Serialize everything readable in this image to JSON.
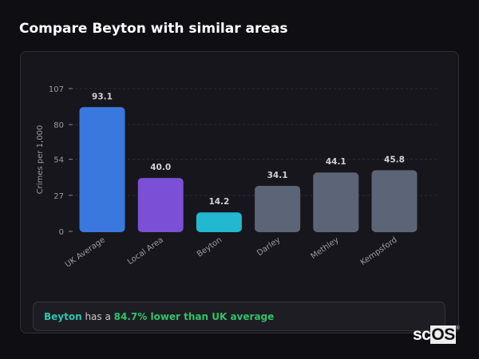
{
  "title": "Compare Beyton with similar areas",
  "chart_data": {
    "type": "bar",
    "categories": [
      "UK Average",
      "Local Area",
      "Beyton",
      "Darley",
      "Methley",
      "Kempsford"
    ],
    "values": [
      93.1,
      40.0,
      14.2,
      34.1,
      44.1,
      45.8
    ],
    "value_labels": [
      "93.1",
      "40.0",
      "14.2",
      "34.1",
      "44.1",
      "45.8"
    ],
    "colors": [
      "#3a78dd",
      "#7b4fd6",
      "#22b8cf",
      "#5c6577",
      "#5c6577",
      "#5c6577"
    ],
    "ylabel": "Crimes per 1,000",
    "yticks": [
      0,
      27,
      54,
      80,
      107
    ],
    "ylim": [
      0,
      107
    ],
    "grid": true
  },
  "summary": {
    "area": "Beyton",
    "middle": " has a ",
    "result": "84.7% lower than UK average"
  },
  "logo": {
    "text_a": "sc",
    "text_b": "OS",
    "mark": "®"
  }
}
